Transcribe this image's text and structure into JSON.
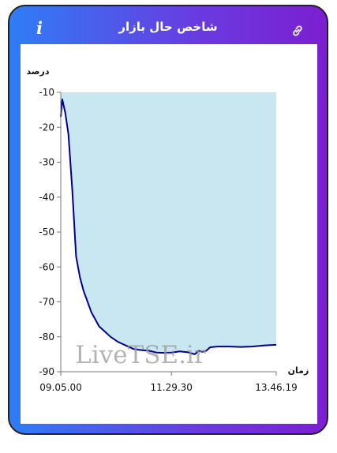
{
  "header": {
    "title": "شاخص حال بازار",
    "info_icon": "info-icon",
    "info_glyph": "i",
    "link_icon": "link-icon"
  },
  "colors": {
    "gradient_start": "#2f7df6",
    "gradient_end": "#7b1fd0",
    "line": "#00008b",
    "fill": "#c9e7f0"
  },
  "watermark": "LiveTSE.ir",
  "chart_data": {
    "type": "area",
    "title": "",
    "ylabel": "درصد",
    "xlabel": "زمان",
    "ylim": [
      -90,
      -10
    ],
    "yticks": [
      -10,
      -20,
      -30,
      -40,
      -50,
      -60,
      -70,
      -80,
      -90
    ],
    "xlim": [
      "09.05.00",
      "13.46.19"
    ],
    "xticks": [
      "09.05.00",
      "11.29.30",
      "13.46.19"
    ],
    "grid": false,
    "series": [
      {
        "x": [
          "09.05.00",
          "09.07.00",
          "09.09.00",
          "09.11.00",
          "09.15.00",
          "09.20.00",
          "09.25.00",
          "09.30.00",
          "09.35.00",
          "09.40.00",
          "09.45.00",
          "09.50.00",
          "09.55.00",
          "10.00.00",
          "10.10.00",
          "10.20.00",
          "10.30.00",
          "10.40.00",
          "10.50.00",
          "11.00.00",
          "11.10.00",
          "11.20.00",
          "11.30.00",
          "11.40.00",
          "11.50.00",
          "12.00.00",
          "12.05.00",
          "12.10.00",
          "12.15.00",
          "12.20.00",
          "12.30.00",
          "12.45.00",
          "13.00.00",
          "13.15.00",
          "13.30.00",
          "13.46.19"
        ],
        "y": [
          -17,
          -12,
          -14,
          -16,
          -22,
          -38,
          -57,
          -63,
          -67,
          -70,
          -73,
          -75,
          -77,
          -78,
          -80,
          -81.5,
          -82.5,
          -83.5,
          -83.8,
          -84,
          -84.5,
          -84.6,
          -84.5,
          -84.2,
          -84.4,
          -85,
          -84,
          -84.3,
          -84,
          -83,
          -82.8,
          -82.8,
          -82.9,
          -82.8,
          -82.5,
          -82.3
        ]
      }
    ]
  }
}
